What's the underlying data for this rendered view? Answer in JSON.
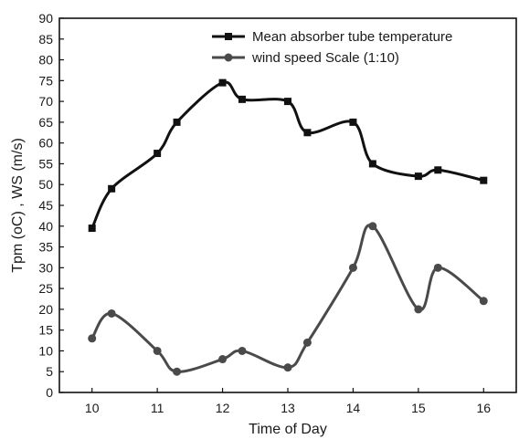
{
  "chart_data": {
    "type": "line",
    "xlabel": "Time of Day",
    "ylabel": "Tpm (oC) , WS (m/s)",
    "xlim": [
      9.5,
      16.5
    ],
    "ylim": [
      0,
      90
    ],
    "x_ticks": [
      10,
      11,
      12,
      13,
      14,
      15,
      16
    ],
    "y_ticks": [
      0,
      5,
      10,
      15,
      20,
      25,
      30,
      35,
      40,
      45,
      50,
      55,
      60,
      65,
      70,
      75,
      80,
      85,
      90
    ],
    "grid": false,
    "legend_position": "top-right",
    "series": [
      {
        "name": "Mean absorber tube temperature",
        "marker": "square",
        "color": "#111111",
        "x": [
          10,
          10.3,
          11,
          11.3,
          12,
          12.3,
          13,
          13.3,
          14,
          14.3,
          15,
          15.3,
          16
        ],
        "y": [
          39.5,
          49,
          57.5,
          65,
          74.5,
          70.5,
          70,
          62.5,
          65,
          55,
          52,
          53.5,
          51
        ]
      },
      {
        "name": "wind speed Scale (1:10)",
        "marker": "circle",
        "color": "#4a4a4a",
        "x": [
          10,
          10.3,
          11,
          11.3,
          12,
          12.3,
          13,
          13.3,
          14,
          14.3,
          15,
          15.3,
          16
        ],
        "y": [
          13,
          19,
          10,
          5,
          8,
          10,
          6,
          12,
          30,
          40,
          20,
          30,
          22
        ]
      }
    ]
  }
}
